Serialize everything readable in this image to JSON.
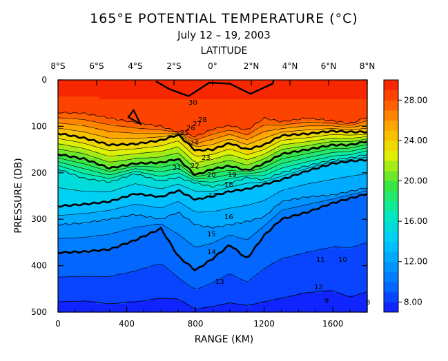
{
  "chart_data": {
    "type": "heatmap",
    "title": "165°E POTENTIAL TEMPERATURE (°C)",
    "subtitle": "July 12 – 19, 2003",
    "top_axis_label": "LATITUDE",
    "xlabel": "RANGE (KM)",
    "ylabel": "PRESSURE (DB)",
    "xlim": [
      0,
      1800
    ],
    "ylim": [
      500,
      0
    ],
    "x_ticks": [
      0,
      400,
      800,
      1200,
      1600
    ],
    "y_ticks": [
      0,
      100,
      200,
      300,
      400,
      500
    ],
    "top_ticks": [
      "8°S",
      "6°S",
      "4°S",
      "2°S",
      "0°",
      "2°N",
      "4°N",
      "6°N",
      "8°N"
    ],
    "colorbar": {
      "range": [
        7,
        30
      ],
      "ticks": [
        "8.00",
        "12.00",
        "16.00",
        "20.00",
        "24.00",
        "28.00"
      ],
      "tick_values": [
        8,
        12,
        16,
        20,
        24,
        28
      ]
    },
    "contour_labels": [
      "30",
      "28",
      "27",
      "26",
      "25",
      "24",
      "23",
      "22",
      "21",
      "20",
      "19",
      "18",
      "17",
      "16",
      "15",
      "14",
      "13",
      "12",
      "11",
      "10",
      "9",
      "8"
    ],
    "isotherm_depths": {
      "range_km": [
        0,
        150,
        300,
        450,
        600,
        700,
        800,
        900,
        1000,
        1100,
        1200,
        1300,
        1450,
        1600,
        1700,
        1800
      ],
      "t28": [
        70,
        72,
        82,
        92,
        100,
        112,
        122,
        106,
        98,
        108,
        82,
        90,
        82,
        88,
        94,
        80
      ],
      "t24": [
        115,
        125,
        140,
        138,
        130,
        118,
        152,
        150,
        136,
        150,
        140,
        120,
        116,
        110,
        112,
        112
      ],
      "t20": [
        160,
        170,
        190,
        180,
        178,
        170,
        205,
        192,
        185,
        195,
        180,
        160,
        150,
        140,
        140,
        132
      ],
      "t16": [
        192,
        212,
        220,
        202,
        218,
        210,
        222,
        230,
        222,
        210,
        215,
        200,
        185,
        172,
        168,
        160
      ],
      "t14": [
        272,
        268,
        262,
        245,
        252,
        238,
        258,
        250,
        240,
        235,
        225,
        215,
        196,
        180,
        175,
        172
      ],
      "t12": [
        312,
        308,
        300,
        290,
        300,
        285,
        312,
        318,
        312,
        305,
        295,
        262,
        252,
        248,
        240,
        232
      ],
      "t10": [
        372,
        370,
        365,
        345,
        320,
        380,
        410,
        385,
        355,
        385,
        335,
        300,
        285,
        265,
        255,
        245
      ],
      "t8": [
        478,
        476,
        482,
        478,
        470,
        472,
        494,
        488,
        480,
        486,
        478,
        470,
        458,
        454,
        468,
        456
      ]
    },
    "grid": false,
    "legend": "colorbar-right"
  }
}
